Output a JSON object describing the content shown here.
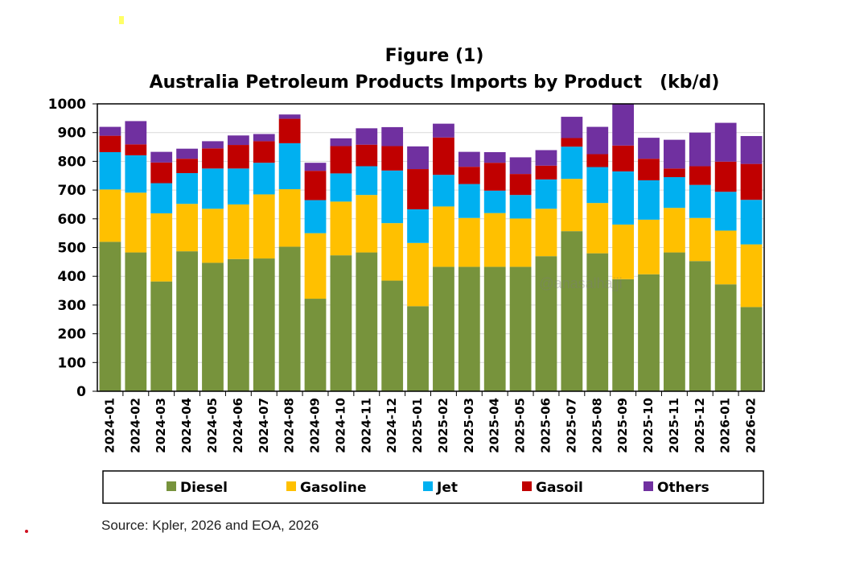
{
  "chart_data": {
    "type": "bar",
    "stacked": true,
    "title_line1": "Figure (1)",
    "title_line2": "Australia Petroleum Products Imports by Product",
    "unit": "(kb/d)",
    "xlabel": "",
    "ylabel": "",
    "ylim": [
      0,
      1000
    ],
    "yticks": [
      "0",
      "100",
      "200",
      "300",
      "400",
      "500",
      "600",
      "700",
      "800",
      "900",
      "1000"
    ],
    "grid": true,
    "legend_position": "bottom",
    "categories": [
      "2024-01",
      "2024-02",
      "2024-03",
      "2024-04",
      "2024-05",
      "2024-06",
      "2024-07",
      "2024-08",
      "2024-09",
      "2024-10",
      "2024-11",
      "2024-12",
      "2025-01",
      "2025-02",
      "2025-03",
      "2025-04",
      "2025-05",
      "2025-06",
      "2025-07",
      "2025-08",
      "2025-09",
      "2025-10",
      "2025-11",
      "2025-12",
      "2026-01",
      "2026-02"
    ],
    "series": [
      {
        "name": "Diesel",
        "color": "#77933c",
        "values": [
          520,
          483,
          382,
          487,
          447,
          460,
          462,
          503,
          322,
          473,
          483,
          385,
          296,
          433,
          433,
          433,
          433,
          470,
          557,
          480,
          390,
          407,
          483,
          453,
          372,
          293
        ]
      },
      {
        "name": "Gasoline",
        "color": "#ffc000",
        "values": [
          182,
          208,
          237,
          165,
          188,
          190,
          223,
          200,
          228,
          187,
          200,
          200,
          220,
          210,
          170,
          187,
          168,
          165,
          182,
          175,
          190,
          190,
          155,
          150,
          187,
          218
        ]
      },
      {
        "name": "Jet",
        "color": "#00b0f0",
        "values": [
          130,
          130,
          105,
          107,
          140,
          125,
          110,
          160,
          115,
          98,
          100,
          183,
          117,
          110,
          118,
          78,
          82,
          102,
          112,
          125,
          185,
          137,
          107,
          115,
          135,
          155
        ]
      },
      {
        "name": "Gasoil",
        "color": "#c00000",
        "values": [
          57,
          38,
          72,
          50,
          70,
          82,
          75,
          85,
          102,
          95,
          75,
          85,
          140,
          130,
          60,
          97,
          73,
          48,
          30,
          45,
          90,
          75,
          30,
          65,
          105,
          125
        ]
      },
      {
        "name": "Others",
        "color": "#7030a0",
        "values": [
          31,
          81,
          37,
          35,
          25,
          33,
          25,
          15,
          28,
          27,
          57,
          66,
          79,
          48,
          52,
          37,
          58,
          54,
          74,
          95,
          145,
          73,
          100,
          117,
          135,
          97
        ]
      }
    ],
    "watermark": "@anasalhajji",
    "source": "Source: Kpler, 2026 and EOA, 2026"
  }
}
